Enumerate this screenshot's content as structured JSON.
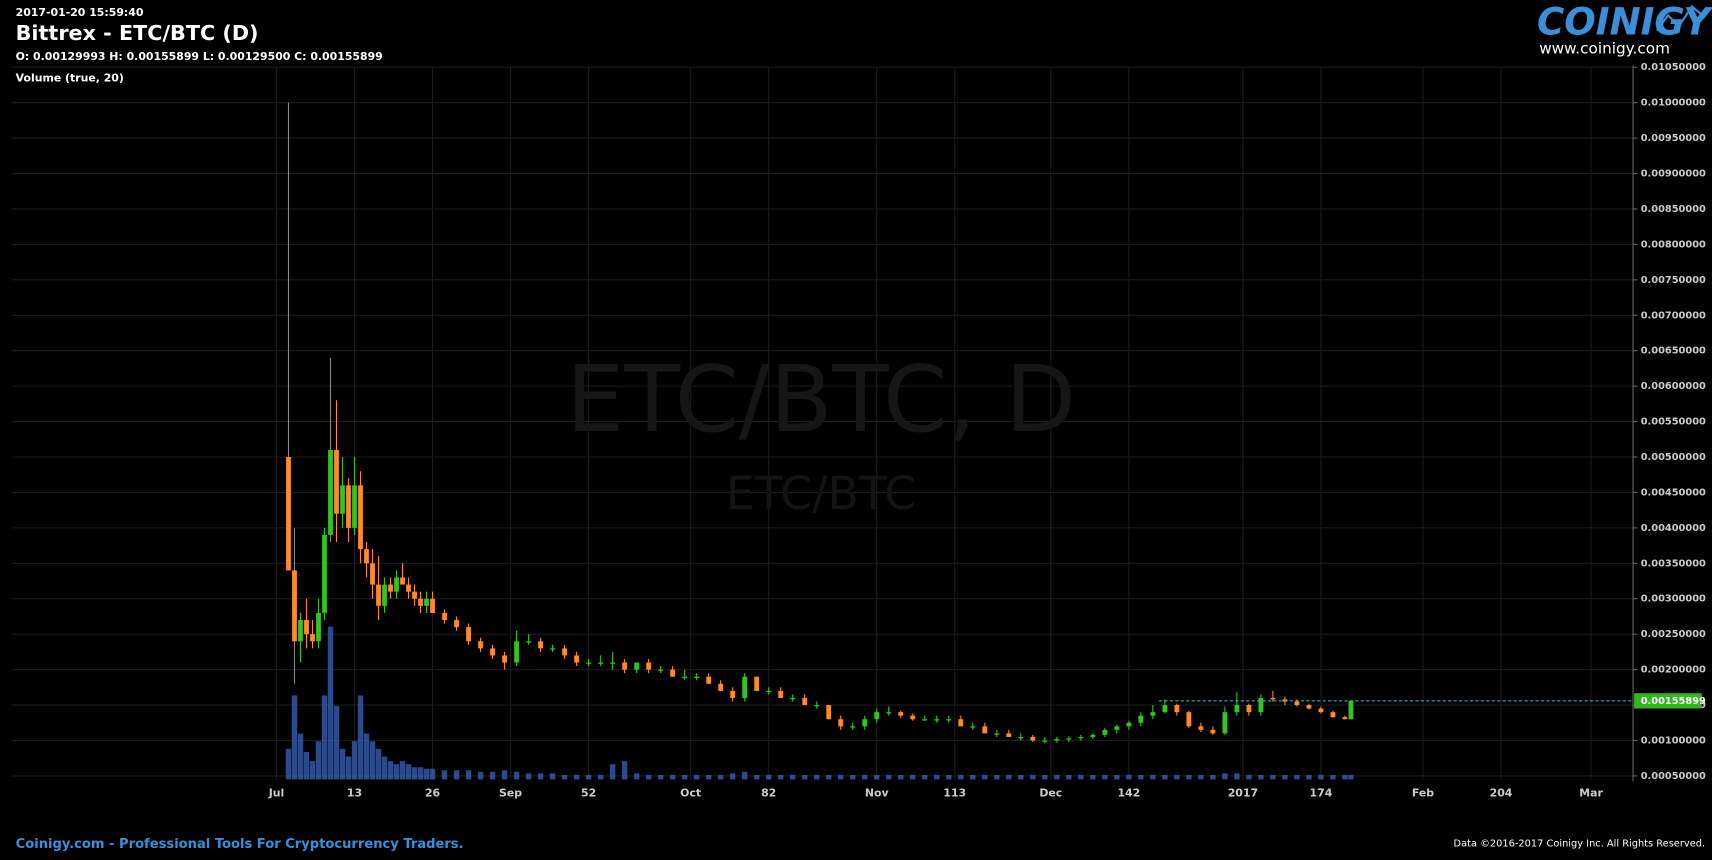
{
  "header": {
    "timestamp": "2017-01-20 15:59:40",
    "title": "Bittrex - ETC/BTC (D)",
    "ohlc": "O: 0.00129993 H: 0.00155899 L: 0.00129500 C: 0.00155899",
    "indicator": "Volume (true, 20)"
  },
  "watermark": {
    "main": "ETC/BTC, D",
    "sub": "ETC/BTC"
  },
  "logo": {
    "name": "COINIGY",
    "url": "www.coinigy.com"
  },
  "footer": {
    "left": "Coinigy.com - Professional Tools For Cryptocurrency Traders.",
    "right": "Data ©2016-2017 Coinigy Inc. All Rights Reserved."
  },
  "chart_data": {
    "type": "candlestick",
    "grid": true,
    "up_color": "#33c41f",
    "down_color": "#ff8a2a",
    "volume_color": "#3b63b8",
    "last_price_color": "#33b51f",
    "xlim": [
      -44,
      226
    ],
    "ylim": [
      0.00045,
      0.0105
    ],
    "xticks": [
      {
        "value": 0,
        "label": "Jul"
      },
      13,
      26,
      {
        "value": 39,
        "label": "Sep"
      },
      52,
      {
        "value": 69,
        "label": "Oct"
      },
      82,
      {
        "value": 100,
        "label": "Nov"
      },
      113,
      {
        "value": 129,
        "label": "Dec"
      },
      142,
      {
        "value": 161,
        "label": "2017"
      },
      174,
      {
        "value": 191,
        "label": "Feb"
      },
      204,
      {
        "value": 219,
        "label": "Mar"
      }
    ],
    "yticks": [
      {
        "value": 0.0005,
        "label": "0.00050000"
      },
      {
        "value": 0.001,
        "label": "0.00100000"
      },
      {
        "value": 0.0015,
        "label": "0.00150000"
      },
      {
        "value": 0.002,
        "label": "0.00200000"
      },
      {
        "value": 0.0025,
        "label": "0.00250000"
      },
      {
        "value": 0.003,
        "label": "0.00300000"
      },
      {
        "value": 0.0035,
        "label": "0.00350000"
      },
      {
        "value": 0.004,
        "label": "0.00400000"
      },
      {
        "value": 0.0045,
        "label": "0.00450000"
      },
      {
        "value": 0.005,
        "label": "0.00500000"
      },
      {
        "value": 0.0055,
        "label": "0.00550000"
      },
      {
        "value": 0.006,
        "label": "0.00600000"
      },
      {
        "value": 0.0065,
        "label": "0.00650000"
      },
      {
        "value": 0.007,
        "label": "0.00700000"
      },
      {
        "value": 0.0075,
        "label": "0.00750000"
      },
      {
        "value": 0.008,
        "label": "0.00800000"
      },
      {
        "value": 0.0085,
        "label": "0.00850000"
      },
      {
        "value": 0.009,
        "label": "0.00900000"
      },
      {
        "value": 0.0095,
        "label": "0.00950000"
      },
      {
        "value": 0.01,
        "label": "0.01000000"
      },
      {
        "value": 0.0105,
        "label": "0.01050000"
      }
    ],
    "candles": [
      {
        "x": 2,
        "open": 0.005,
        "high": 0.01,
        "low": 0.0034,
        "close": 0.0034,
        "volume": 20
      },
      {
        "x": 3,
        "open": 0.0034,
        "high": 0.004,
        "low": 0.0018,
        "close": 0.0024,
        "volume": 55
      },
      {
        "x": 4,
        "open": 0.0024,
        "high": 0.0028,
        "low": 0.0021,
        "close": 0.0027,
        "volume": 30
      },
      {
        "x": 5,
        "open": 0.0027,
        "high": 0.003,
        "low": 0.0023,
        "close": 0.0025,
        "volume": 18
      },
      {
        "x": 6,
        "open": 0.0025,
        "high": 0.0027,
        "low": 0.0023,
        "close": 0.0024,
        "volume": 12
      },
      {
        "x": 7,
        "open": 0.0024,
        "high": 0.003,
        "low": 0.0023,
        "close": 0.0028,
        "volume": 25
      },
      {
        "x": 8,
        "open": 0.0028,
        "high": 0.004,
        "low": 0.0027,
        "close": 0.0039,
        "volume": 55
      },
      {
        "x": 9,
        "open": 0.0039,
        "high": 0.0064,
        "low": 0.0038,
        "close": 0.0051,
        "volume": 100
      },
      {
        "x": 10,
        "open": 0.0051,
        "high": 0.0058,
        "low": 0.0038,
        "close": 0.0042,
        "volume": 48
      },
      {
        "x": 11,
        "open": 0.0042,
        "high": 0.005,
        "low": 0.004,
        "close": 0.0046,
        "volume": 20
      },
      {
        "x": 12,
        "open": 0.0046,
        "high": 0.0047,
        "low": 0.0038,
        "close": 0.004,
        "volume": 15
      },
      {
        "x": 13,
        "open": 0.004,
        "high": 0.005,
        "low": 0.0039,
        "close": 0.0046,
        "volume": 25
      },
      {
        "x": 14,
        "open": 0.0046,
        "high": 0.0048,
        "low": 0.0035,
        "close": 0.0037,
        "volume": 55
      },
      {
        "x": 15,
        "open": 0.0037,
        "high": 0.0038,
        "low": 0.0033,
        "close": 0.0035,
        "volume": 30
      },
      {
        "x": 16,
        "open": 0.0035,
        "high": 0.0037,
        "low": 0.003,
        "close": 0.0032,
        "volume": 25
      },
      {
        "x": 17,
        "open": 0.0032,
        "high": 0.0036,
        "low": 0.0027,
        "close": 0.0029,
        "volume": 20
      },
      {
        "x": 18,
        "open": 0.0029,
        "high": 0.0033,
        "low": 0.0028,
        "close": 0.0032,
        "volume": 15
      },
      {
        "x": 19,
        "open": 0.0032,
        "high": 0.0033,
        "low": 0.003,
        "close": 0.0031,
        "volume": 12
      },
      {
        "x": 20,
        "open": 0.0031,
        "high": 0.0034,
        "low": 0.003,
        "close": 0.0033,
        "volume": 10
      },
      {
        "x": 21,
        "open": 0.0033,
        "high": 0.0035,
        "low": 0.0032,
        "close": 0.0032,
        "volume": 12
      },
      {
        "x": 22,
        "open": 0.0032,
        "high": 0.0033,
        "low": 0.003,
        "close": 0.0031,
        "volume": 10
      },
      {
        "x": 23,
        "open": 0.0031,
        "high": 0.0032,
        "low": 0.0029,
        "close": 0.003,
        "volume": 8
      },
      {
        "x": 24,
        "open": 0.003,
        "high": 0.0031,
        "low": 0.0028,
        "close": 0.0029,
        "volume": 8
      },
      {
        "x": 25,
        "open": 0.0029,
        "high": 0.0031,
        "low": 0.0028,
        "close": 0.003,
        "volume": 7
      },
      {
        "x": 26,
        "open": 0.003,
        "high": 0.0031,
        "low": 0.0028,
        "close": 0.0028,
        "volume": 7
      },
      {
        "x": 28,
        "open": 0.0028,
        "high": 0.00285,
        "low": 0.00265,
        "close": 0.0027,
        "volume": 6
      },
      {
        "x": 30,
        "open": 0.0027,
        "high": 0.00275,
        "low": 0.00255,
        "close": 0.0026,
        "volume": 6
      },
      {
        "x": 32,
        "open": 0.0026,
        "high": 0.00265,
        "low": 0.00235,
        "close": 0.0024,
        "volume": 6
      },
      {
        "x": 34,
        "open": 0.0024,
        "high": 0.00245,
        "low": 0.00225,
        "close": 0.0023,
        "volume": 5
      },
      {
        "x": 36,
        "open": 0.0023,
        "high": 0.00235,
        "low": 0.00215,
        "close": 0.0022,
        "volume": 5
      },
      {
        "x": 38,
        "open": 0.0022,
        "high": 0.00225,
        "low": 0.002,
        "close": 0.0021,
        "volume": 6
      },
      {
        "x": 40,
        "open": 0.0021,
        "high": 0.00255,
        "low": 0.00205,
        "close": 0.0024,
        "volume": 5
      },
      {
        "x": 42,
        "open": 0.0024,
        "high": 0.0025,
        "low": 0.00235,
        "close": 0.0024,
        "volume": 4
      },
      {
        "x": 44,
        "open": 0.0024,
        "high": 0.00245,
        "low": 0.00225,
        "close": 0.0023,
        "volume": 4
      },
      {
        "x": 46,
        "open": 0.0023,
        "high": 0.00235,
        "low": 0.00225,
        "close": 0.0023,
        "volume": 4
      },
      {
        "x": 48,
        "open": 0.0023,
        "high": 0.00235,
        "low": 0.00215,
        "close": 0.0022,
        "volume": 3
      },
      {
        "x": 50,
        "open": 0.0022,
        "high": 0.00225,
        "low": 0.00205,
        "close": 0.0021,
        "volume": 3
      },
      {
        "x": 52,
        "open": 0.0021,
        "high": 0.00215,
        "low": 0.00205,
        "close": 0.0021,
        "volume": 3
      },
      {
        "x": 54,
        "open": 0.0021,
        "high": 0.0022,
        "low": 0.00205,
        "close": 0.0021,
        "volume": 3
      },
      {
        "x": 56,
        "open": 0.0021,
        "high": 0.00225,
        "low": 0.002,
        "close": 0.0021,
        "volume": 10
      },
      {
        "x": 58,
        "open": 0.0021,
        "high": 0.00215,
        "low": 0.00195,
        "close": 0.002,
        "volume": 12
      },
      {
        "x": 60,
        "open": 0.002,
        "high": 0.0021,
        "low": 0.00195,
        "close": 0.0021,
        "volume": 4
      },
      {
        "x": 62,
        "open": 0.0021,
        "high": 0.00215,
        "low": 0.00195,
        "close": 0.002,
        "volume": 3
      },
      {
        "x": 64,
        "open": 0.002,
        "high": 0.00205,
        "low": 0.00195,
        "close": 0.002,
        "volume": 3
      },
      {
        "x": 66,
        "open": 0.002,
        "high": 0.00205,
        "low": 0.0019,
        "close": 0.0019,
        "volume": 3
      },
      {
        "x": 68,
        "open": 0.0019,
        "high": 0.002,
        "low": 0.00185,
        "close": 0.0019,
        "volume": 3
      },
      {
        "x": 70,
        "open": 0.0019,
        "high": 0.00195,
        "low": 0.00185,
        "close": 0.0019,
        "volume": 3
      },
      {
        "x": 72,
        "open": 0.0019,
        "high": 0.00195,
        "low": 0.0018,
        "close": 0.0018,
        "volume": 3
      },
      {
        "x": 74,
        "open": 0.0018,
        "high": 0.00185,
        "low": 0.0017,
        "close": 0.0017,
        "volume": 3
      },
      {
        "x": 76,
        "open": 0.0017,
        "high": 0.00175,
        "low": 0.00155,
        "close": 0.0016,
        "volume": 4
      },
      {
        "x": 78,
        "open": 0.0016,
        "high": 0.00195,
        "low": 0.00155,
        "close": 0.0019,
        "volume": 5
      },
      {
        "x": 80,
        "open": 0.0019,
        "high": 0.0019,
        "low": 0.0017,
        "close": 0.0017,
        "volume": 3
      },
      {
        "x": 82,
        "open": 0.0017,
        "high": 0.00175,
        "low": 0.00165,
        "close": 0.0017,
        "volume": 3
      },
      {
        "x": 84,
        "open": 0.0017,
        "high": 0.00175,
        "low": 0.0016,
        "close": 0.0016,
        "volume": 3
      },
      {
        "x": 86,
        "open": 0.0016,
        "high": 0.00165,
        "low": 0.00155,
        "close": 0.0016,
        "volume": 3
      },
      {
        "x": 88,
        "open": 0.0016,
        "high": 0.00165,
        "low": 0.0015,
        "close": 0.0015,
        "volume": 3
      },
      {
        "x": 90,
        "open": 0.0015,
        "high": 0.00155,
        "low": 0.00145,
        "close": 0.0015,
        "volume": 3
      },
      {
        "x": 92,
        "open": 0.0015,
        "high": 0.0015,
        "low": 0.0013,
        "close": 0.0013,
        "volume": 3
      },
      {
        "x": 94,
        "open": 0.0013,
        "high": 0.00135,
        "low": 0.00115,
        "close": 0.0012,
        "volume": 3
      },
      {
        "x": 96,
        "open": 0.0012,
        "high": 0.00125,
        "low": 0.00115,
        "close": 0.0012,
        "volume": 3
      },
      {
        "x": 98,
        "open": 0.0012,
        "high": 0.00135,
        "low": 0.00115,
        "close": 0.0013,
        "volume": 3
      },
      {
        "x": 100,
        "open": 0.0013,
        "high": 0.00145,
        "low": 0.00125,
        "close": 0.0014,
        "volume": 3
      },
      {
        "x": 102,
        "open": 0.0014,
        "high": 0.00148,
        "low": 0.00135,
        "close": 0.0014,
        "volume": 3
      },
      {
        "x": 104,
        "open": 0.0014,
        "high": 0.00142,
        "low": 0.00132,
        "close": 0.00135,
        "volume": 3
      },
      {
        "x": 106,
        "open": 0.00135,
        "high": 0.00138,
        "low": 0.00128,
        "close": 0.0013,
        "volume": 3
      },
      {
        "x": 108,
        "open": 0.0013,
        "high": 0.00135,
        "low": 0.00128,
        "close": 0.0013,
        "volume": 3
      },
      {
        "x": 110,
        "open": 0.0013,
        "high": 0.00135,
        "low": 0.00125,
        "close": 0.0013,
        "volume": 3
      },
      {
        "x": 112,
        "open": 0.0013,
        "high": 0.00135,
        "low": 0.00125,
        "close": 0.0013,
        "volume": 3
      },
      {
        "x": 114,
        "open": 0.0013,
        "high": 0.00135,
        "low": 0.0012,
        "close": 0.0012,
        "volume": 3
      },
      {
        "x": 116,
        "open": 0.0012,
        "high": 0.00125,
        "low": 0.00115,
        "close": 0.0012,
        "volume": 3
      },
      {
        "x": 118,
        "open": 0.0012,
        "high": 0.00125,
        "low": 0.0011,
        "close": 0.0011,
        "volume": 3
      },
      {
        "x": 120,
        "open": 0.0011,
        "high": 0.00115,
        "low": 0.00105,
        "close": 0.0011,
        "volume": 3
      },
      {
        "x": 122,
        "open": 0.0011,
        "high": 0.00115,
        "low": 0.00105,
        "close": 0.00105,
        "volume": 3
      },
      {
        "x": 124,
        "open": 0.00105,
        "high": 0.0011,
        "low": 0.001,
        "close": 0.00105,
        "volume": 3
      },
      {
        "x": 126,
        "open": 0.00105,
        "high": 0.00108,
        "low": 0.00098,
        "close": 0.001,
        "volume": 3
      },
      {
        "x": 128,
        "open": 0.001,
        "high": 0.00105,
        "low": 0.00096,
        "close": 0.001,
        "volume": 3
      },
      {
        "x": 130,
        "open": 0.001,
        "high": 0.00105,
        "low": 0.00097,
        "close": 0.00102,
        "volume": 3
      },
      {
        "x": 132,
        "open": 0.00102,
        "high": 0.00106,
        "low": 0.00098,
        "close": 0.00103,
        "volume": 3
      },
      {
        "x": 134,
        "open": 0.00103,
        "high": 0.00108,
        "low": 0.001,
        "close": 0.00105,
        "volume": 3
      },
      {
        "x": 136,
        "open": 0.00105,
        "high": 0.0011,
        "low": 0.00102,
        "close": 0.00108,
        "volume": 3
      },
      {
        "x": 138,
        "open": 0.00108,
        "high": 0.00118,
        "low": 0.00105,
        "close": 0.00115,
        "volume": 3
      },
      {
        "x": 140,
        "open": 0.00115,
        "high": 0.00122,
        "low": 0.0011,
        "close": 0.0012,
        "volume": 3
      },
      {
        "x": 142,
        "open": 0.0012,
        "high": 0.00128,
        "low": 0.00115,
        "close": 0.00125,
        "volume": 3
      },
      {
        "x": 144,
        "open": 0.00125,
        "high": 0.0014,
        "low": 0.0012,
        "close": 0.00135,
        "volume": 3
      },
      {
        "x": 146,
        "open": 0.00135,
        "high": 0.0015,
        "low": 0.0013,
        "close": 0.0014,
        "volume": 3
      },
      {
        "x": 148,
        "open": 0.0014,
        "high": 0.00158,
        "low": 0.00138,
        "close": 0.0015,
        "volume": 3
      },
      {
        "x": 150,
        "open": 0.0015,
        "high": 0.00152,
        "low": 0.00135,
        "close": 0.0014,
        "volume": 3
      },
      {
        "x": 152,
        "open": 0.0014,
        "high": 0.00142,
        "low": 0.00118,
        "close": 0.0012,
        "volume": 3
      },
      {
        "x": 154,
        "open": 0.0012,
        "high": 0.00125,
        "low": 0.00112,
        "close": 0.00115,
        "volume": 3
      },
      {
        "x": 156,
        "open": 0.00115,
        "high": 0.0012,
        "low": 0.00108,
        "close": 0.0011,
        "volume": 3
      },
      {
        "x": 158,
        "open": 0.0011,
        "high": 0.00148,
        "low": 0.00108,
        "close": 0.0014,
        "volume": 4
      },
      {
        "x": 160,
        "open": 0.0014,
        "high": 0.00168,
        "low": 0.00135,
        "close": 0.0015,
        "volume": 4
      },
      {
        "x": 162,
        "open": 0.0015,
        "high": 0.00152,
        "low": 0.00135,
        "close": 0.0014,
        "volume": 3
      },
      {
        "x": 164,
        "open": 0.0014,
        "high": 0.00165,
        "low": 0.00135,
        "close": 0.0016,
        "volume": 3
      },
      {
        "x": 166,
        "open": 0.0016,
        "high": 0.0017,
        "low": 0.00155,
        "close": 0.00158,
        "volume": 3
      },
      {
        "x": 168,
        "open": 0.00158,
        "high": 0.00162,
        "low": 0.0015,
        "close": 0.00155,
        "volume": 3
      },
      {
        "x": 170,
        "open": 0.00155,
        "high": 0.00158,
        "low": 0.00148,
        "close": 0.0015,
        "volume": 3
      },
      {
        "x": 172,
        "open": 0.0015,
        "high": 0.00152,
        "low": 0.00144,
        "close": 0.00145,
        "volume": 3
      },
      {
        "x": 174,
        "open": 0.00145,
        "high": 0.00148,
        "low": 0.00138,
        "close": 0.0014,
        "volume": 3
      },
      {
        "x": 176,
        "open": 0.0014,
        "high": 0.00142,
        "low": 0.00132,
        "close": 0.00133,
        "volume": 3
      },
      {
        "x": 178,
        "open": 0.00133,
        "high": 0.00135,
        "low": 0.0013,
        "close": 0.0013,
        "volume": 3
      },
      {
        "x": 179,
        "open": 0.00129993,
        "high": 0.00155899,
        "low": 0.001295,
        "close": 0.00155899,
        "volume": 3
      }
    ]
  }
}
